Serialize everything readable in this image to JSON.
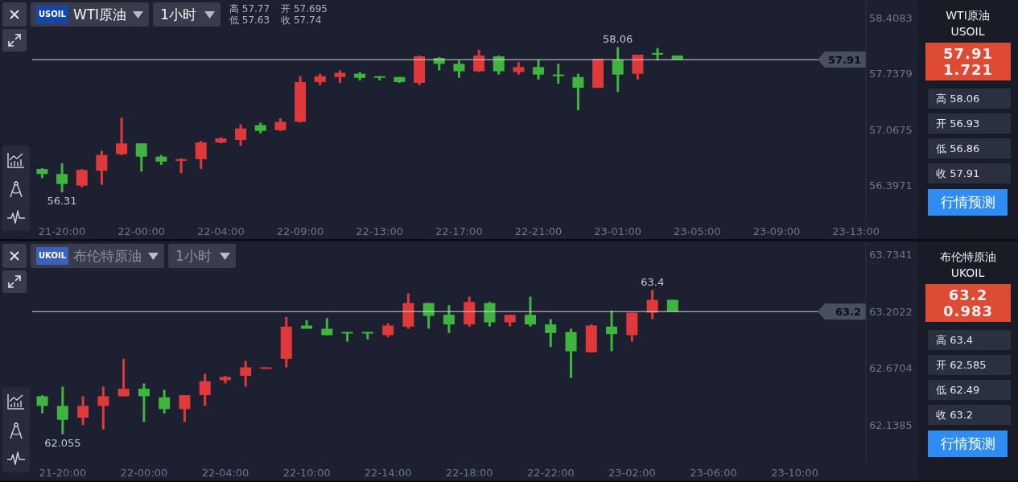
{
  "chart_data": [
    {
      "type": "candlestick",
      "title": "WTI原油",
      "subtitle": "1小时",
      "annotations": [
        "58.06",
        "56.31",
        "USOIL",
        "高 57.77",
        "开 57.695",
        "低 57.63",
        "收 57.74"
      ],
      "categories": [
        null,
        "21-20:00",
        null,
        null,
        null,
        "22-00:00",
        null,
        null,
        null,
        "22-04:00",
        null,
        null,
        null,
        "22-09:00",
        null,
        null,
        null,
        "22-13:00",
        null,
        null,
        null,
        "22-17:00",
        null,
        null,
        null,
        "22-21:00",
        null,
        null,
        null,
        "23-01:00",
        null,
        null,
        null,
        "23-05:00",
        null,
        null,
        null,
        "23-09:00",
        null,
        null,
        null,
        "23-13:00"
      ],
      "ohlc": [
        [
          56.59,
          56.6,
          56.48,
          56.53
        ],
        [
          56.53,
          56.66,
          56.31,
          56.41
        ],
        [
          56.39,
          56.59,
          56.37,
          56.58
        ],
        [
          56.57,
          56.81,
          56.4,
          56.76
        ],
        [
          56.77,
          57.21,
          56.76,
          56.9
        ],
        [
          56.9,
          56.9,
          56.56,
          56.74
        ],
        [
          56.74,
          56.76,
          56.64,
          56.68
        ],
        [
          56.69,
          56.72,
          56.54,
          56.71
        ],
        [
          56.71,
          56.93,
          56.59,
          56.91
        ],
        [
          56.91,
          56.97,
          56.9,
          56.96
        ],
        [
          56.94,
          57.13,
          56.87,
          57.08
        ],
        [
          57.12,
          57.15,
          57.02,
          57.05
        ],
        [
          57.06,
          57.2,
          57.05,
          57.16
        ],
        [
          57.16,
          57.71,
          57.15,
          57.64
        ],
        [
          57.64,
          57.74,
          57.6,
          57.71
        ],
        [
          57.7,
          57.78,
          57.63,
          57.75
        ],
        [
          57.74,
          57.76,
          57.66,
          57.69
        ],
        [
          57.71,
          57.71,
          57.66,
          57.7
        ],
        [
          57.7,
          57.7,
          57.63,
          57.64
        ],
        [
          57.63,
          57.96,
          57.6,
          57.95
        ],
        [
          57.93,
          57.94,
          57.78,
          57.86
        ],
        [
          57.86,
          57.9,
          57.69,
          57.77
        ],
        [
          57.77,
          58.03,
          57.76,
          57.96
        ],
        [
          57.95,
          57.96,
          57.73,
          57.77
        ],
        [
          57.76,
          57.88,
          57.73,
          57.82
        ],
        [
          57.82,
          57.91,
          57.67,
          57.73
        ],
        [
          57.73,
          57.86,
          57.62,
          57.71
        ],
        [
          57.7,
          57.74,
          57.3,
          57.57
        ],
        [
          57.57,
          57.92,
          57.57,
          57.92
        ],
        [
          57.91,
          58.06,
          57.52,
          57.73
        ],
        [
          57.74,
          57.97,
          57.67,
          57.97
        ],
        [
          57.99,
          58.05,
          57.9,
          57.97
        ],
        [
          57.96,
          57.96,
          57.91,
          57.91
        ],
        null,
        null,
        null,
        null,
        null,
        null,
        null,
        null,
        null
      ],
      "colors": [
        "#3fb53f",
        "#3fb53f",
        "#e0393b",
        "#e0393b",
        "#e0393b",
        "#3fb53f",
        "#3fb53f",
        "#e0393b",
        "#e0393b",
        "#e0393b",
        "#e0393b",
        "#3fb53f",
        "#e0393b",
        "#e0393b",
        "#e0393b",
        "#e0393b",
        "#3fb53f",
        "#3fb53f",
        "#3fb53f",
        "#e0393b",
        "#3fb53f",
        "#3fb53f",
        "#e0393b",
        "#3fb53f",
        "#e0393b",
        "#3fb53f",
        "#3fb53f",
        "#3fb53f",
        "#e0393b",
        "#3fb53f",
        "#e0393b",
        "#3fb53f",
        "#3fb53f",
        null,
        null,
        null,
        null,
        null,
        null,
        null,
        null,
        null
      ],
      "ylim": [
        55.96,
        58.61
      ],
      "yticks": [
        56.3971,
        57.0675,
        57.7379,
        58.4083
      ],
      "ref_lines": [
        {
          "axis": "y",
          "value": 57.91,
          "label": "57.91",
          "color": "#d4d4d4"
        }
      ]
    },
    {
      "type": "other",
      "title": "WTI原油",
      "subtitle": "USOIL",
      "annotations": [
        "57.91",
        "1.721",
        "高 58.06",
        "开 56.93",
        "低 56.86",
        "收 57.91",
        "行情预测"
      ]
    },
    {
      "type": "candlestick",
      "title": "布伦特原油",
      "subtitle": "1小时",
      "annotations": [
        "63.4",
        "62.055",
        "UKOIL"
      ],
      "categories": [
        null,
        "21-20:00",
        null,
        null,
        null,
        "22-00:00",
        null,
        null,
        null,
        "22-04:00",
        null,
        null,
        null,
        "22-10:00",
        null,
        null,
        null,
        "22-14:00",
        null,
        null,
        null,
        "22-18:00",
        null,
        null,
        null,
        "22-22:00",
        null,
        null,
        null,
        "23-02:00",
        null,
        null,
        null,
        "23-06:00",
        null,
        null,
        null,
        "23-10:00",
        null,
        null,
        null
      ],
      "ohlc": [
        [
          62.41,
          62.42,
          62.25,
          62.32
        ],
        [
          62.32,
          62.5,
          62.055,
          62.19
        ],
        [
          62.21,
          62.41,
          62.14,
          62.32
        ],
        [
          62.32,
          62.5,
          62.1,
          62.41
        ],
        [
          62.41,
          62.76,
          62.41,
          62.48
        ],
        [
          62.48,
          62.53,
          62.17,
          62.41
        ],
        [
          62.4,
          62.47,
          62.25,
          62.29
        ],
        [
          62.29,
          62.42,
          62.17,
          62.42
        ],
        [
          62.42,
          62.62,
          62.32,
          62.55
        ],
        [
          62.56,
          62.6,
          62.53,
          62.59
        ],
        [
          62.6,
          62.74,
          62.5,
          62.68
        ],
        [
          62.67,
          62.68,
          62.67,
          62.68
        ],
        [
          62.76,
          63.15,
          62.68,
          63.06
        ],
        [
          63.07,
          63.12,
          63.04,
          63.04
        ],
        [
          63.04,
          63.14,
          62.98,
          62.98
        ],
        [
          63.01,
          63.01,
          62.92,
          63.0
        ],
        [
          63.01,
          63.01,
          62.94,
          63.0
        ],
        [
          62.98,
          63.09,
          62.96,
          63.07
        ],
        [
          63.06,
          63.37,
          63.04,
          63.28
        ],
        [
          63.28,
          63.28,
          63.04,
          63.16
        ],
        [
          63.17,
          63.26,
          63.0,
          63.08
        ],
        [
          63.08,
          63.34,
          63.06,
          63.29
        ],
        [
          63.28,
          63.29,
          63.06,
          63.1
        ],
        [
          63.1,
          63.17,
          63.06,
          63.17
        ],
        [
          63.17,
          63.34,
          63.06,
          63.08
        ],
        [
          63.08,
          63.13,
          62.87,
          63.0
        ],
        [
          63.01,
          63.04,
          62.58,
          62.83
        ],
        [
          62.82,
          63.08,
          62.82,
          63.07
        ],
        [
          63.06,
          63.21,
          62.83,
          62.99
        ],
        [
          62.98,
          63.19,
          62.92,
          63.19
        ],
        [
          63.19,
          63.4,
          63.13,
          63.31
        ],
        [
          63.31,
          63.31,
          63.2,
          63.2
        ],
        null,
        null,
        null,
        null,
        null,
        null,
        null,
        null,
        null
      ],
      "colors": [
        "#3fb53f",
        "#3fb53f",
        "#e0393b",
        "#e0393b",
        "#e0393b",
        "#3fb53f",
        "#3fb53f",
        "#e0393b",
        "#e0393b",
        "#e0393b",
        "#e0393b",
        "#e0393b",
        "#e0393b",
        "#3fb53f",
        "#3fb53f",
        "#3fb53f",
        "#3fb53f",
        "#e0393b",
        "#e0393b",
        "#3fb53f",
        "#3fb53f",
        "#e0393b",
        "#3fb53f",
        "#e0393b",
        "#3fb53f",
        "#3fb53f",
        "#3fb53f",
        "#e0393b",
        "#3fb53f",
        "#e0393b",
        "#e0393b",
        "#3fb53f",
        null,
        null,
        null,
        null,
        null,
        null,
        null,
        null,
        null
      ],
      "ylim": [
        61.79,
        63.84
      ],
      "yticks": [
        62.1385,
        62.6704,
        63.2022,
        63.7341
      ],
      "ref_lines": [
        {
          "axis": "y",
          "value": 63.2,
          "label": "63.2",
          "color": "#d4d4d4"
        }
      ]
    },
    {
      "type": "other",
      "title": "布伦特原油",
      "subtitle": "UKOIL",
      "annotations": [
        "63.2",
        "0.983",
        "高 63.4",
        "开 62.585",
        "低 62.49",
        "收 63.2",
        "行情预测"
      ]
    }
  ]
}
